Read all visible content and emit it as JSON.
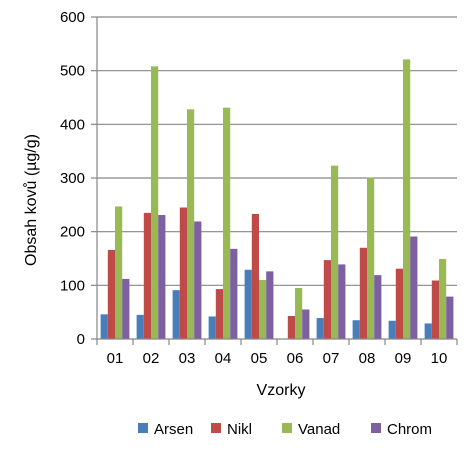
{
  "chart_data": {
    "type": "bar",
    "title": "",
    "xlabel": "Vzorky",
    "ylabel": "Obsah kovů (µg/g)",
    "categories": [
      "01",
      "02",
      "03",
      "04",
      "05",
      "06",
      "07",
      "08",
      "09",
      "10"
    ],
    "ylim": [
      0,
      600
    ],
    "yticks": [
      "0",
      "100",
      "200",
      "300",
      "400",
      "500",
      "600"
    ],
    "grid": true,
    "legend_position": "bottom",
    "series": [
      {
        "name": "Arsen",
        "color": "#4a7ebb",
        "values": [
          46,
          45,
          91,
          42,
          129,
          0,
          39,
          35,
          34,
          29
        ]
      },
      {
        "name": "Nikl",
        "color": "#be4b48",
        "values": [
          166,
          235,
          245,
          93,
          233,
          43,
          147,
          170,
          131,
          109
        ]
      },
      {
        "name": "Vanad",
        "color": "#98b954",
        "values": [
          247,
          508,
          428,
          431,
          110,
          95,
          323,
          301,
          521,
          149
        ]
      },
      {
        "name": "Chrom",
        "color": "#7d60a0",
        "values": [
          112,
          231,
          219,
          168,
          126,
          55,
          139,
          119,
          191,
          79
        ]
      }
    ]
  }
}
